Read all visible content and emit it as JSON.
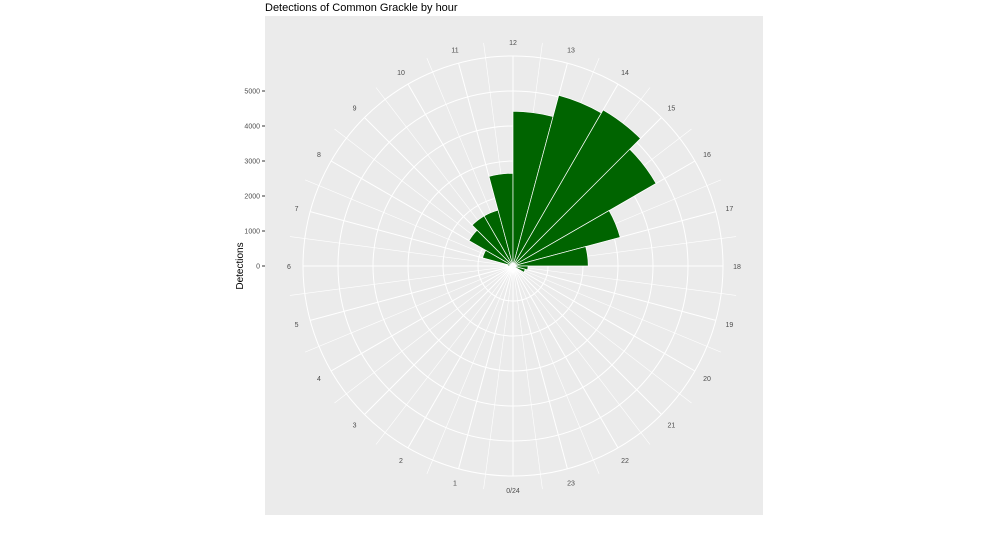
{
  "chart_data": {
    "type": "bar",
    "polar": true,
    "title": "Detections of Common Grackle by hour",
    "ylabel": "Detections",
    "radial_ticks": [
      0,
      1000,
      2000,
      3000,
      4000,
      5000
    ],
    "hour_labels": [
      "0/24",
      "1",
      "2",
      "3",
      "4",
      "5",
      "6",
      "7",
      "8",
      "9",
      "10",
      "11",
      "12",
      "13",
      "14",
      "15",
      "16",
      "17",
      "18",
      "19",
      "20",
      "21",
      "22",
      "23"
    ],
    "categories": [
      0,
      1,
      2,
      3,
      4,
      5,
      6,
      7,
      8,
      9,
      10,
      11,
      12,
      13,
      14,
      15,
      16,
      17,
      18,
      19,
      20,
      21,
      22,
      23
    ],
    "values": [
      0,
      0,
      0,
      0,
      0,
      0,
      150,
      900,
      1450,
      1650,
      1650,
      2650,
      4420,
      5050,
      5150,
      4720,
      3170,
      2150,
      430,
      360,
      0,
      0,
      0,
      0
    ],
    "grid": true,
    "bar_color": "#006400",
    "panel_color": "#ebebeb"
  }
}
